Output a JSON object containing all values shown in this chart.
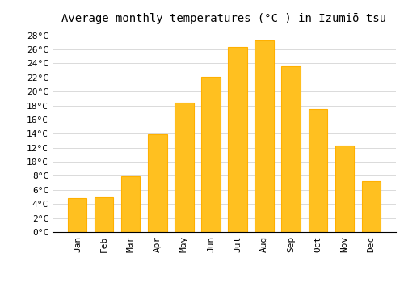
{
  "title": "Average monthly temperatures (°C ) in Izumiō tsu",
  "months": [
    "Jan",
    "Feb",
    "Mar",
    "Apr",
    "May",
    "Jun",
    "Jul",
    "Aug",
    "Sep",
    "Oct",
    "Nov",
    "Dec"
  ],
  "values": [
    4.8,
    5.0,
    7.9,
    13.9,
    18.4,
    22.1,
    26.3,
    27.3,
    23.6,
    17.5,
    12.3,
    7.3
  ],
  "bar_color": "#FFC020",
  "bar_edge_color": "#FFB000",
  "background_color": "#FFFFFF",
  "grid_color": "#CCCCCC",
  "yticks": [
    0,
    2,
    4,
    6,
    8,
    10,
    12,
    14,
    16,
    18,
    20,
    22,
    24,
    26,
    28
  ],
  "ylim": [
    0,
    29
  ],
  "title_fontsize": 10,
  "tick_fontsize": 8,
  "font_family": "monospace"
}
